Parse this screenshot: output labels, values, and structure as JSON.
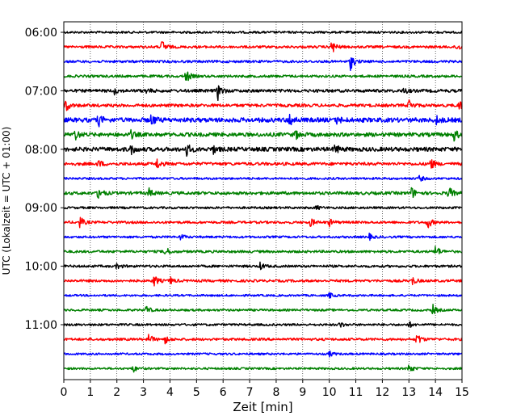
{
  "chart_data": {
    "type": "line",
    "title": "",
    "xlabel": "Zeit  [min]",
    "ylabel": "UTC (Lokalzeit = UTC + 01:00)",
    "xlim": [
      0,
      15
    ],
    "x_ticks": [
      "0",
      "1",
      "2",
      "3",
      "4",
      "5",
      "6",
      "7",
      "8",
      "9",
      "10",
      "11",
      "12",
      "13",
      "14",
      "15"
    ],
    "y_ticks": [
      "06:00",
      "07:00",
      "08:00",
      "09:00",
      "10:00",
      "11:00"
    ],
    "grid": "vertical dotted at each minute",
    "trace_interval_minutes": 15,
    "colors_cycle": [
      "#000000",
      "#ff0000",
      "#0000ff",
      "#008000"
    ],
    "series": [
      {
        "start": "06:00",
        "color": "#000000",
        "events": [],
        "noise": 0.15
      },
      {
        "start": "06:15",
        "color": "#ff0000",
        "events": [
          {
            "x": 3.7,
            "amp": 1.0
          },
          {
            "x": 10.1,
            "amp": 1.0
          },
          {
            "x": 14.8,
            "amp": 0.5
          }
        ],
        "noise": 0.2
      },
      {
        "start": "06:30",
        "color": "#0000ff",
        "events": [
          {
            "x": 10.8,
            "amp": 1.1
          }
        ],
        "noise": 0.2
      },
      {
        "start": "06:45",
        "color": "#008000",
        "events": [
          {
            "x": 4.6,
            "amp": 1.0
          }
        ],
        "noise": 0.2
      },
      {
        "start": "07:00",
        "color": "#000000",
        "events": [
          {
            "x": 5.8,
            "amp": 1.2
          },
          {
            "x": 1.9,
            "amp": 0.4
          },
          {
            "x": 3.1,
            "amp": 0.4
          },
          {
            "x": 12.8,
            "amp": 0.4
          }
        ],
        "noise": 0.3
      },
      {
        "start": "07:15",
        "color": "#ff0000",
        "events": [
          {
            "x": 0.05,
            "amp": 1.0
          },
          {
            "x": 13.0,
            "amp": 0.8
          },
          {
            "x": 14.9,
            "amp": 0.7
          }
        ],
        "noise": 0.3
      },
      {
        "start": "07:30",
        "color": "#0000ff",
        "events": [
          {
            "x": 1.3,
            "amp": 0.8
          },
          {
            "x": 3.3,
            "amp": 0.8
          },
          {
            "x": 8.5,
            "amp": 0.9
          },
          {
            "x": 10.3,
            "amp": 0.5
          },
          {
            "x": 14.0,
            "amp": 0.6
          }
        ],
        "noise": 0.55
      },
      {
        "start": "07:45",
        "color": "#008000",
        "events": [
          {
            "x": 0.4,
            "amp": 0.8
          },
          {
            "x": 2.5,
            "amp": 0.6
          },
          {
            "x": 8.7,
            "amp": 0.7
          },
          {
            "x": 14.7,
            "amp": 0.8
          }
        ],
        "noise": 0.45
      },
      {
        "start": "08:00",
        "color": "#000000",
        "events": [
          {
            "x": 2.5,
            "amp": 0.8
          },
          {
            "x": 4.6,
            "amp": 1.0
          },
          {
            "x": 5.6,
            "amp": 0.6
          },
          {
            "x": 10.2,
            "amp": 0.7
          }
        ],
        "noise": 0.5
      },
      {
        "start": "08:15",
        "color": "#ff0000",
        "events": [
          {
            "x": 1.3,
            "amp": 0.5
          },
          {
            "x": 3.5,
            "amp": 0.8
          },
          {
            "x": 13.8,
            "amp": 0.9
          }
        ],
        "noise": 0.3
      },
      {
        "start": "08:30",
        "color": "#0000ff",
        "events": [
          {
            "x": 13.4,
            "amp": 0.4
          }
        ],
        "noise": 0.15
      },
      {
        "start": "08:45",
        "color": "#008000",
        "events": [
          {
            "x": 1.3,
            "amp": 1.0
          },
          {
            "x": 3.2,
            "amp": 0.6
          },
          {
            "x": 13.1,
            "amp": 0.8
          },
          {
            "x": 14.5,
            "amp": 0.9
          }
        ],
        "noise": 0.3
      },
      {
        "start": "09:00",
        "color": "#000000",
        "events": [
          {
            "x": 9.5,
            "amp": 0.3
          }
        ],
        "noise": 0.15
      },
      {
        "start": "09:15",
        "color": "#ff0000",
        "events": [
          {
            "x": 0.6,
            "amp": 0.8
          },
          {
            "x": 9.3,
            "amp": 0.6
          },
          {
            "x": 10.0,
            "amp": 0.5
          },
          {
            "x": 13.7,
            "amp": 0.9
          }
        ],
        "noise": 0.2
      },
      {
        "start": "09:30",
        "color": "#0000ff",
        "events": [
          {
            "x": 4.4,
            "amp": 0.4
          },
          {
            "x": 11.5,
            "amp": 0.4
          }
        ],
        "noise": 0.15
      },
      {
        "start": "09:45",
        "color": "#008000",
        "events": [
          {
            "x": 3.8,
            "amp": 0.8
          },
          {
            "x": 14.0,
            "amp": 0.9
          }
        ],
        "noise": 0.2
      },
      {
        "start": "10:00",
        "color": "#000000",
        "events": [
          {
            "x": 2.0,
            "amp": 0.4
          },
          {
            "x": 7.4,
            "amp": 0.5
          }
        ],
        "noise": 0.2
      },
      {
        "start": "10:15",
        "color": "#ff0000",
        "events": [
          {
            "x": 3.4,
            "amp": 0.8
          },
          {
            "x": 4.0,
            "amp": 0.5
          },
          {
            "x": 13.1,
            "amp": 0.7
          }
        ],
        "noise": 0.2
      },
      {
        "start": "10:30",
        "color": "#0000ff",
        "events": [
          {
            "x": 10.0,
            "amp": 0.4
          }
        ],
        "noise": 0.12
      },
      {
        "start": "10:45",
        "color": "#008000",
        "events": [
          {
            "x": 3.1,
            "amp": 0.6
          },
          {
            "x": 13.9,
            "amp": 0.7
          }
        ],
        "noise": 0.15
      },
      {
        "start": "11:00",
        "color": "#000000",
        "events": [
          {
            "x": 10.4,
            "amp": 0.4
          },
          {
            "x": 13.0,
            "amp": 0.4
          }
        ],
        "noise": 0.15
      },
      {
        "start": "11:15",
        "color": "#ff0000",
        "events": [
          {
            "x": 3.2,
            "amp": 0.7
          },
          {
            "x": 3.8,
            "amp": 0.6
          },
          {
            "x": 13.3,
            "amp": 0.9
          }
        ],
        "noise": 0.2
      },
      {
        "start": "11:30",
        "color": "#0000ff",
        "events": [
          {
            "x": 10.0,
            "amp": 0.4
          }
        ],
        "noise": 0.12
      },
      {
        "start": "11:45",
        "color": "#008000",
        "events": [
          {
            "x": 2.6,
            "amp": 0.5
          },
          {
            "x": 13.0,
            "amp": 0.7
          }
        ],
        "noise": 0.12
      }
    ]
  }
}
